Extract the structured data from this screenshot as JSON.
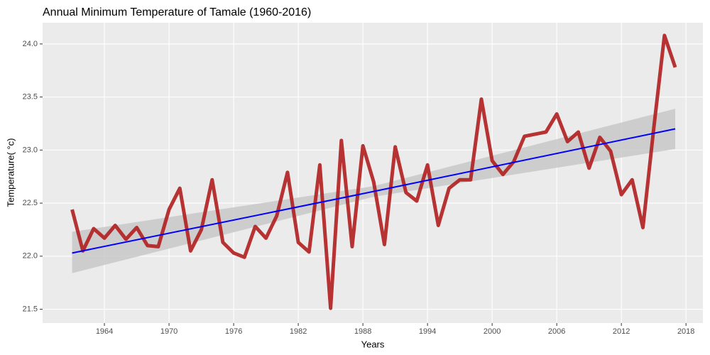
{
  "chart_data": {
    "type": "line",
    "title": "Annual Minimum Temperature  of Tamale (1960-2016)",
    "x_label": "Years",
    "y_label": "Temperature( °c)",
    "x": [
      1961,
      1962,
      1963,
      1964,
      1965,
      1966,
      1967,
      1968,
      1969,
      1970,
      1971,
      1972,
      1973,
      1974,
      1975,
      1976,
      1977,
      1978,
      1979,
      1980,
      1981,
      1982,
      1983,
      1984,
      1985,
      1986,
      1987,
      1988,
      1989,
      1990,
      1991,
      1992,
      1993,
      1994,
      1995,
      1996,
      1997,
      1998,
      1999,
      2000,
      2001,
      2002,
      2003,
      2004,
      2005,
      2006,
      2007,
      2008,
      2009,
      2010,
      2011,
      2012,
      2013,
      2014,
      2015,
      2016,
      2017
    ],
    "series": [
      {
        "color": "#b22222",
        "values": [
          22.44,
          22.05,
          22.26,
          22.17,
          22.29,
          22.16,
          22.27,
          22.1,
          22.09,
          22.44,
          22.64,
          22.05,
          22.25,
          22.72,
          22.13,
          22.03,
          21.99,
          22.28,
          22.17,
          22.38,
          22.79,
          22.13,
          22.04,
          22.86,
          21.51,
          23.09,
          22.09,
          23.04,
          22.7,
          22.11,
          23.03,
          22.6,
          22.52,
          22.86,
          22.29,
          22.64,
          22.72,
          22.72,
          23.48,
          22.9,
          22.77,
          22.89,
          23.13,
          23.15,
          23.17,
          23.34,
          23.08,
          23.17,
          22.83,
          23.12,
          22.99,
          22.58,
          22.72,
          22.27,
          23.2,
          24.08,
          23.78
        ]
      }
    ],
    "trend": {
      "color": "#0000ff",
      "band_color": "#c8c8c8",
      "x": [
        1961,
        1989,
        2017
      ],
      "values": [
        22.03,
        22.61,
        23.2
      ],
      "lower": [
        21.84,
        22.56,
        23.01
      ],
      "upper": [
        22.23,
        22.66,
        23.39
      ]
    },
    "xlim": [
      1958.26,
      2019.57
    ],
    "xticks": [
      1964,
      1970,
      1976,
      1982,
      1988,
      1994,
      2000,
      2006,
      2012,
      2018
    ],
    "ylim": [
      21.37,
      24.2
    ],
    "yticks": [
      {
        "value": 21.5,
        "label": "21.5"
      },
      {
        "value": 22,
        "label": "22.0"
      },
      {
        "value": 22.5,
        "label": "22.5"
      },
      {
        "value": 23,
        "label": "23.0"
      },
      {
        "value": 23.5,
        "label": "23.5"
      },
      {
        "value": 24,
        "label": "24.0"
      }
    ],
    "grid": true
  }
}
